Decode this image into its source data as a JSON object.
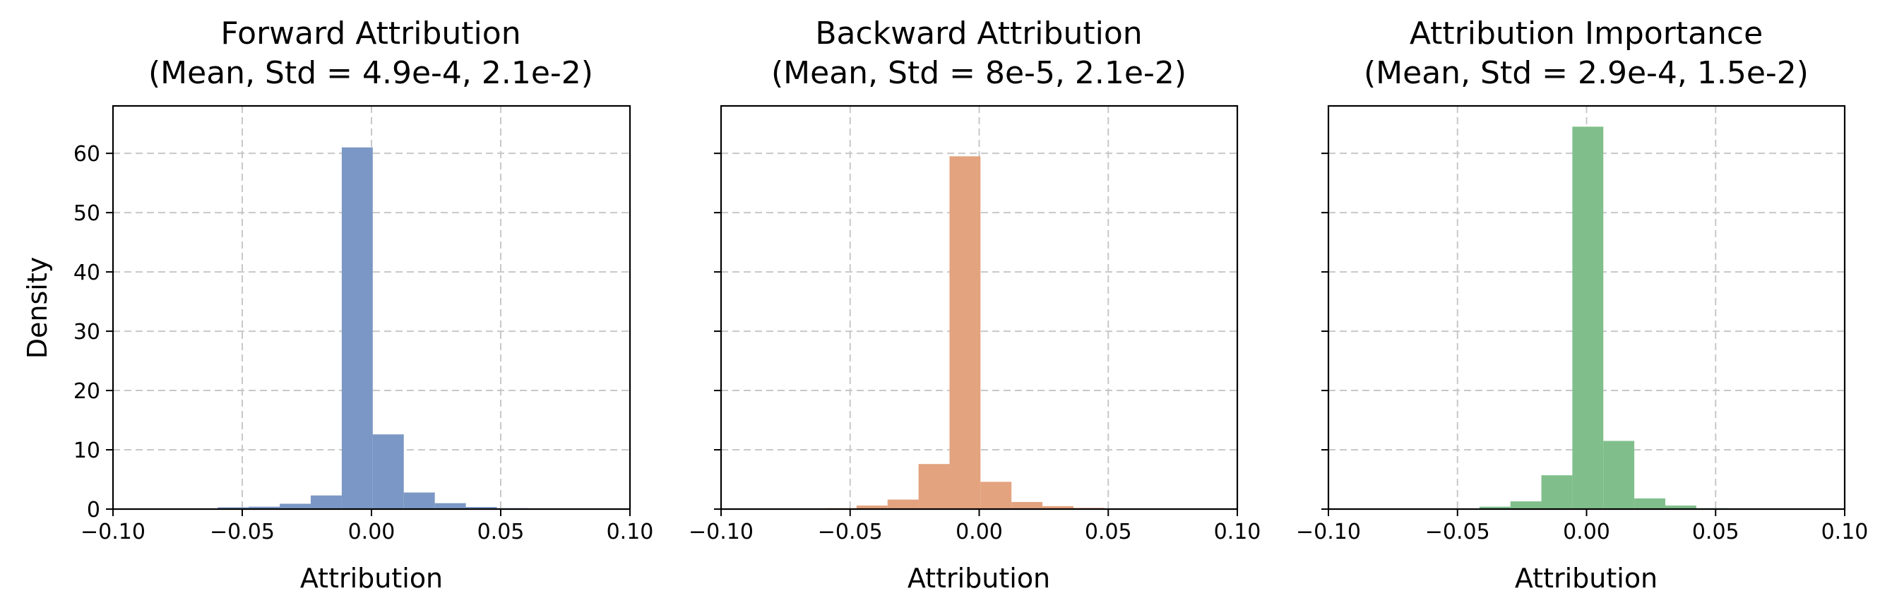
{
  "chart_data": [
    {
      "type": "bar",
      "title": [
        "Forward Attribution",
        "(Mean, Std = 4.9e-4, 2.1e-2)"
      ],
      "xlabel": "Attribution",
      "ylabel": "Density",
      "xlim": [
        -0.1,
        0.1
      ],
      "ylim": [
        0,
        68
      ],
      "xticks": [
        -0.1,
        -0.05,
        0.0,
        0.05,
        0.1
      ],
      "xtick_labels": [
        "−0.10",
        "−0.05",
        "0.00",
        "0.05",
        "0.10"
      ],
      "yticks": [
        0,
        10,
        20,
        30,
        40,
        50,
        60
      ],
      "ytick_labels": [
        "0",
        "10",
        "20",
        "30",
        "40",
        "50",
        "60"
      ],
      "grid": true,
      "color": "#7b97c5",
      "bins": [
        {
          "x0": -0.0715,
          "x1": -0.0595,
          "y": 0.05
        },
        {
          "x0": -0.0595,
          "x1": -0.0475,
          "y": 0.3
        },
        {
          "x0": -0.0475,
          "x1": -0.0355,
          "y": 0.4
        },
        {
          "x0": -0.0355,
          "x1": -0.0235,
          "y": 0.9
        },
        {
          "x0": -0.0235,
          "x1": -0.0115,
          "y": 2.3
        },
        {
          "x0": -0.0115,
          "x1": 0.0005,
          "y": 61.0
        },
        {
          "x0": 0.0005,
          "x1": 0.0125,
          "y": 12.6
        },
        {
          "x0": 0.0125,
          "x1": 0.0245,
          "y": 2.8
        },
        {
          "x0": 0.0245,
          "x1": 0.0365,
          "y": 1.0
        },
        {
          "x0": 0.0365,
          "x1": 0.0485,
          "y": 0.35
        },
        {
          "x0": 0.0485,
          "x1": 0.0605,
          "y": 0.15
        },
        {
          "x0": 0.0605,
          "x1": 0.0725,
          "y": 0.05
        }
      ]
    },
    {
      "type": "bar",
      "title": [
        "Backward Attribution",
        "(Mean, Std = 8e-5, 2.1e-2)"
      ],
      "xlabel": "Attribution",
      "ylabel": "",
      "xlim": [
        -0.1,
        0.1
      ],
      "ylim": [
        0,
        68
      ],
      "xticks": [
        -0.1,
        -0.05,
        0.0,
        0.05,
        0.1
      ],
      "xtick_labels": [
        "−0.10",
        "−0.05",
        "0.00",
        "0.05",
        "0.10"
      ],
      "yticks": [
        0,
        10,
        20,
        30,
        40,
        50,
        60
      ],
      "ytick_labels": [],
      "grid": true,
      "color": "#e3a37f",
      "bins": [
        {
          "x0": -0.0715,
          "x1": -0.0595,
          "y": 0.05
        },
        {
          "x0": -0.0595,
          "x1": -0.0475,
          "y": 0.15
        },
        {
          "x0": -0.0475,
          "x1": -0.0355,
          "y": 0.6
        },
        {
          "x0": -0.0355,
          "x1": -0.0235,
          "y": 1.6
        },
        {
          "x0": -0.0235,
          "x1": -0.0115,
          "y": 7.6
        },
        {
          "x0": -0.0115,
          "x1": 0.0005,
          "y": 59.5
        },
        {
          "x0": 0.0005,
          "x1": 0.0125,
          "y": 4.6
        },
        {
          "x0": 0.0125,
          "x1": 0.0245,
          "y": 1.2
        },
        {
          "x0": 0.0245,
          "x1": 0.0365,
          "y": 0.5
        },
        {
          "x0": 0.0365,
          "x1": 0.0485,
          "y": 0.2
        },
        {
          "x0": 0.0485,
          "x1": 0.0605,
          "y": 0.1
        },
        {
          "x0": 0.0605,
          "x1": 0.0725,
          "y": 0.05
        }
      ]
    },
    {
      "type": "bar",
      "title": [
        "Attribution Importance",
        "(Mean, Std = 2.9e-4, 1.5e-2)"
      ],
      "xlabel": "Attribution",
      "ylabel": "",
      "xlim": [
        -0.1,
        0.1
      ],
      "ylim": [
        0,
        68
      ],
      "xticks": [
        -0.1,
        -0.05,
        0.0,
        0.05,
        0.1
      ],
      "xtick_labels": [
        "−0.10",
        "−0.05",
        "0.00",
        "0.05",
        "0.10"
      ],
      "yticks": [
        0,
        10,
        20,
        30,
        40,
        50,
        60
      ],
      "ytick_labels": [],
      "grid": true,
      "color": "#80bf8c",
      "bins": [
        {
          "x0": -0.0535,
          "x1": -0.0415,
          "y": 0.1
        },
        {
          "x0": -0.0415,
          "x1": -0.0295,
          "y": 0.4
        },
        {
          "x0": -0.0295,
          "x1": -0.0175,
          "y": 1.3
        },
        {
          "x0": -0.0175,
          "x1": -0.0055,
          "y": 5.7
        },
        {
          "x0": -0.0055,
          "x1": 0.0065,
          "y": 64.5
        },
        {
          "x0": 0.0065,
          "x1": 0.0185,
          "y": 11.5
        },
        {
          "x0": 0.0185,
          "x1": 0.0305,
          "y": 1.8
        },
        {
          "x0": 0.0305,
          "x1": 0.0425,
          "y": 0.6
        },
        {
          "x0": 0.0425,
          "x1": 0.0545,
          "y": 0.15
        }
      ]
    }
  ]
}
